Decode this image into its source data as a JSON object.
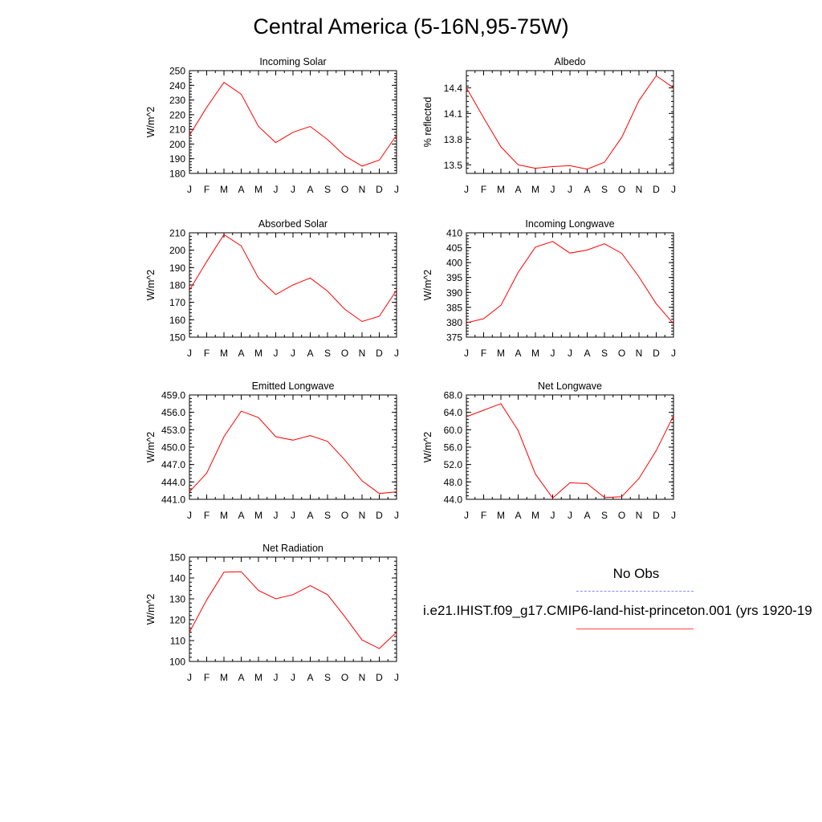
{
  "title": "Central America (5-16N,95-75W)",
  "colors": {
    "model_line": "#ff0000",
    "obs_line": "#8888ff",
    "axis": "#000000"
  },
  "legend": {
    "no_obs_label": "No Obs",
    "model_label": "i.e21.IHIST.f09_g17.CMIP6-land-hist-princeton.001 (yrs 1920-19"
  },
  "month_labels": [
    "J",
    "F",
    "M",
    "A",
    "M",
    "J",
    "J",
    "A",
    "S",
    "O",
    "N",
    "D",
    "J"
  ],
  "chart_data": [
    {
      "type": "line",
      "title": "Incoming Solar",
      "ylabel": "W/m^2",
      "ylim": [
        180,
        250
      ],
      "yticks": [
        180,
        190,
        200,
        210,
        220,
        230,
        240,
        250
      ],
      "ytick_labels": [
        "180",
        "190",
        "200",
        "210",
        "220",
        "230",
        "240",
        "250"
      ],
      "categories": [
        "J",
        "F",
        "M",
        "A",
        "M",
        "J",
        "J",
        "A",
        "S",
        "O",
        "N",
        "D",
        "J"
      ],
      "series": [
        {
          "values": [
            206,
            225,
            242,
            234,
            212,
            201,
            208,
            212,
            203,
            192,
            185,
            189,
            206
          ]
        }
      ]
    },
    {
      "type": "line",
      "title": "Albedo",
      "ylabel": "% reflected",
      "ylim": [
        13.4,
        14.6
      ],
      "yticks": [
        13.5,
        13.8,
        14.1,
        14.4
      ],
      "ytick_labels": [
        "13.5",
        "13.8",
        "14.1",
        "14.4"
      ],
      "categories": [
        "J",
        "F",
        "M",
        "A",
        "M",
        "J",
        "J",
        "A",
        "S",
        "O",
        "N",
        "D",
        "J"
      ],
      "series": [
        {
          "values": [
            14.4,
            14.05,
            13.71,
            13.5,
            13.46,
            13.48,
            13.49,
            13.45,
            13.53,
            13.82,
            14.25,
            14.54,
            14.4
          ]
        }
      ]
    },
    {
      "type": "line",
      "title": "Absorbed Solar",
      "ylabel": "W/m^2",
      "ylim": [
        150,
        210
      ],
      "yticks": [
        150,
        160,
        170,
        180,
        190,
        200,
        210
      ],
      "ytick_labels": [
        "150",
        "160",
        "170",
        "180",
        "190",
        "200",
        "210"
      ],
      "categories": [
        "J",
        "F",
        "M",
        "A",
        "M",
        "J",
        "J",
        "A",
        "S",
        "O",
        "N",
        "D",
        "J"
      ],
      "series": [
        {
          "values": [
            177,
            193.5,
            209,
            202.5,
            184,
            174.5,
            180,
            184,
            176.5,
            166,
            159,
            162,
            177
          ]
        }
      ]
    },
    {
      "type": "line",
      "title": "Incoming Longwave",
      "ylabel": "W/m^2",
      "ylim": [
        375,
        410
      ],
      "yticks": [
        375,
        380,
        385,
        390,
        395,
        400,
        405,
        410
      ],
      "ytick_labels": [
        "375",
        "380",
        "385",
        "390",
        "395",
        "400",
        "405",
        "410"
      ],
      "categories": [
        "J",
        "F",
        "M",
        "A",
        "M",
        "J",
        "J",
        "A",
        "S",
        "O",
        "N",
        "D",
        "J"
      ],
      "series": [
        {
          "values": [
            379.8,
            381.2,
            385.7,
            396.7,
            405.2,
            407.1,
            403.2,
            404.2,
            406.3,
            403.1,
            395.2,
            386.2,
            379.5
          ]
        }
      ]
    },
    {
      "type": "line",
      "title": "Emitted Longwave",
      "ylabel": "W/m^2",
      "ylim": [
        441,
        459
      ],
      "yticks": [
        441,
        444,
        447,
        450,
        453,
        456,
        459
      ],
      "ytick_labels": [
        "441.0",
        "444.0",
        "447.0",
        "450.0",
        "453.0",
        "456.0",
        "459.0"
      ],
      "categories": [
        "J",
        "F",
        "M",
        "A",
        "M",
        "J",
        "J",
        "A",
        "S",
        "O",
        "N",
        "D",
        "J"
      ],
      "series": [
        {
          "values": [
            442.3,
            445.5,
            451.8,
            456.2,
            455.1,
            451.8,
            451.2,
            452.0,
            451.0,
            447.8,
            444.2,
            442.0,
            442.3
          ]
        }
      ]
    },
    {
      "type": "line",
      "title": "Net Longwave",
      "ylabel": "W/m^2",
      "ylim": [
        44,
        68
      ],
      "yticks": [
        44,
        48,
        52,
        56,
        60,
        64,
        68
      ],
      "ytick_labels": [
        "44.0",
        "48.0",
        "52.0",
        "56.0",
        "60.0",
        "64.0",
        "68.0"
      ],
      "categories": [
        "J",
        "F",
        "M",
        "A",
        "M",
        "J",
        "J",
        "A",
        "S",
        "O",
        "N",
        "D",
        "J"
      ],
      "series": [
        {
          "values": [
            63.0,
            64.5,
            66.0,
            59.8,
            49.8,
            44.3,
            47.8,
            47.6,
            44.4,
            44.6,
            48.8,
            55.2,
            63.2
          ]
        }
      ]
    },
    {
      "type": "line",
      "title": "Net Radiation",
      "ylabel": "W/m^2",
      "ylim": [
        100,
        150
      ],
      "yticks": [
        100,
        110,
        120,
        130,
        140,
        150
      ],
      "ytick_labels": [
        "100",
        "110",
        "120",
        "130",
        "140",
        "150"
      ],
      "categories": [
        "J",
        "F",
        "M",
        "A",
        "M",
        "J",
        "J",
        "A",
        "S",
        "O",
        "N",
        "D",
        "J"
      ],
      "series": [
        {
          "values": [
            114,
            129.5,
            142.8,
            143,
            134,
            130,
            132,
            136.3,
            132,
            121.5,
            110.3,
            106.2,
            114
          ]
        }
      ]
    }
  ]
}
